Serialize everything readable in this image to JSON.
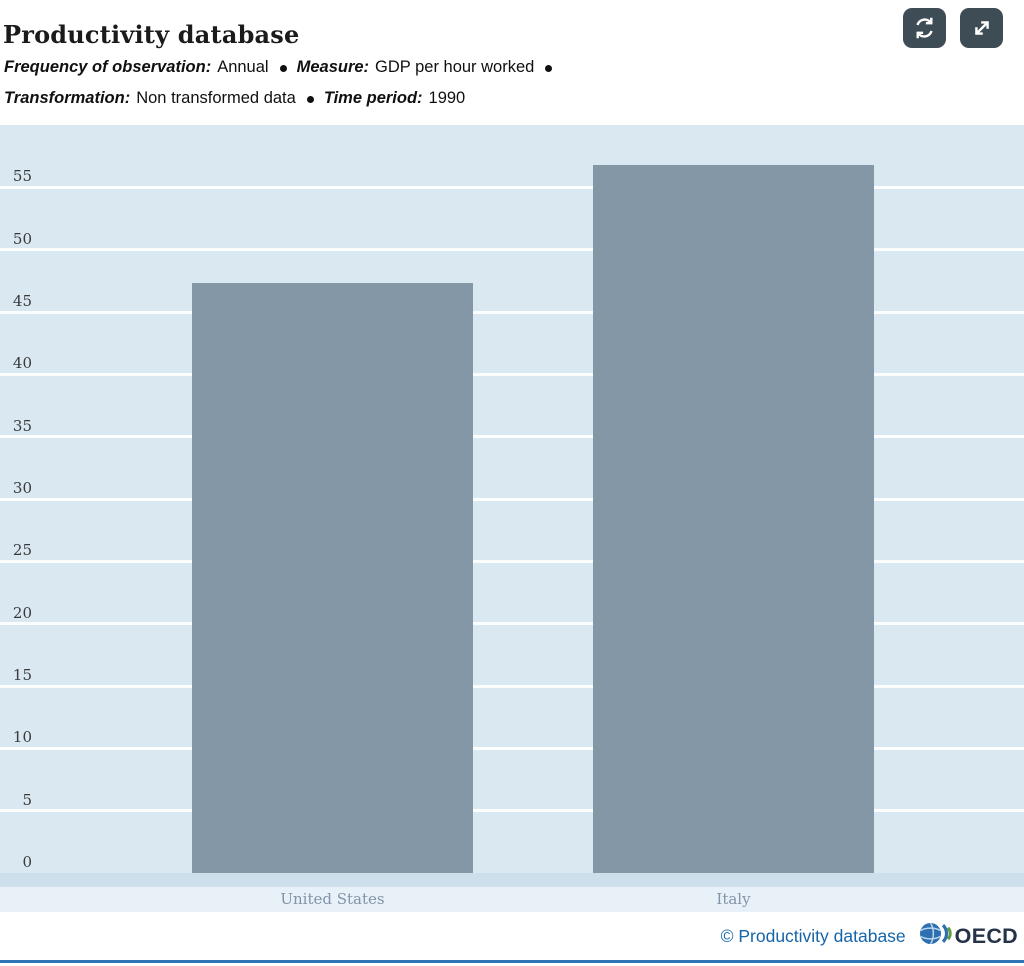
{
  "header": {
    "title": "Productivity database",
    "meta_lines": [
      [
        {
          "label": "Frequency of observation:",
          "value": "Annual",
          "dot_after": true
        },
        {
          "label": "Measure:",
          "value": "GDP per hour worked",
          "dot_after": true
        }
      ],
      [
        {
          "label": "Transformation:",
          "value": "Non transformed data",
          "dot_after": true
        },
        {
          "label": "Time period:",
          "value": "1990",
          "dot_after": false
        }
      ]
    ],
    "buttons": [
      {
        "name": "refresh-button",
        "icon": "refresh-icon"
      },
      {
        "name": "fullscreen-button",
        "icon": "expand-icon"
      }
    ]
  },
  "chart_data": {
    "type": "bar",
    "title": "Productivity database",
    "categories": [
      "United States",
      "Italy"
    ],
    "values": [
      47.3,
      56.8
    ],
    "xlabel": "",
    "ylabel": "",
    "ylim": [
      0,
      60
    ],
    "yticks": [
      0,
      5,
      10,
      15,
      20,
      25,
      30,
      35,
      40,
      45,
      50,
      55
    ],
    "grid": true,
    "legend": "none",
    "bar_color": "#8497a6",
    "plot_background": "#d9e8f1"
  },
  "footer": {
    "attribution": "© Productivity database",
    "brand": "OECD"
  },
  "colors": {
    "accent_blue": "#1565a9",
    "button_background": "#3e4c55",
    "axis_band": "#ccdfeb",
    "category_strip": "#e8f1f8",
    "bottom_rule": "#2e74b5"
  }
}
